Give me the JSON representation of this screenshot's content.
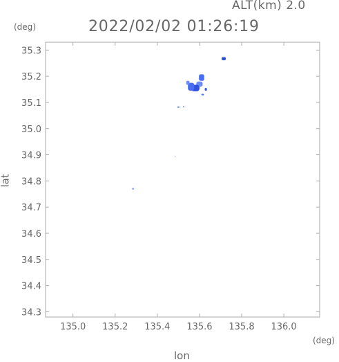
{
  "header": {
    "altitude_label": "ALT(km) 2.0",
    "timestamp": "2022/02/02 01:26:19"
  },
  "axes": {
    "y_unit": "(deg)",
    "x_unit": "(deg)",
    "xlabel": "lon",
    "ylabel": "lat"
  },
  "chart_data": {
    "type": "scatter",
    "title": "",
    "xlabel": "lon",
    "ylabel": "lat",
    "xlim": [
      134.87,
      136.17
    ],
    "ylim": [
      34.28,
      35.33
    ],
    "xticks": [
      "135.0",
      "135.2",
      "135.4",
      "135.6",
      "135.8",
      "136.0"
    ],
    "xtick_values": [
      135.0,
      135.2,
      135.4,
      135.6,
      135.8,
      136.0
    ],
    "yticks": [
      "34.3",
      "34.4",
      "34.5",
      "34.6",
      "34.7",
      "34.8",
      "34.9",
      "35.0",
      "35.1",
      "35.2",
      "35.3"
    ],
    "ytick_values": [
      34.3,
      34.4,
      34.5,
      34.6,
      34.7,
      34.8,
      34.9,
      35.0,
      35.1,
      35.2,
      35.3
    ],
    "grid": false,
    "colors": {
      "echo_dark": "#3050e0",
      "echo_mid": "#4a6ef0",
      "echo_light": "#6a8cf5",
      "axis": "#aaaaaa"
    },
    "series": [
      {
        "points": [
          {
            "x": 135.715,
            "y": 35.267,
            "w": 0.02,
            "h": 0.012
          },
          {
            "x": 135.61,
            "y": 35.195,
            "w": 0.025,
            "h": 0.025
          },
          {
            "x": 135.6,
            "y": 35.17,
            "w": 0.03,
            "h": 0.02
          },
          {
            "x": 135.58,
            "y": 35.155,
            "w": 0.04,
            "h": 0.025
          },
          {
            "x": 135.56,
            "y": 35.16,
            "w": 0.03,
            "h": 0.03
          },
          {
            "x": 135.545,
            "y": 35.175,
            "w": 0.015,
            "h": 0.015
          },
          {
            "x": 135.63,
            "y": 35.15,
            "w": 0.01,
            "h": 0.01
          },
          {
            "x": 135.615,
            "y": 35.13,
            "w": 0.012,
            "h": 0.006
          },
          {
            "x": 135.5,
            "y": 35.082,
            "w": 0.01,
            "h": 0.006
          },
          {
            "x": 135.525,
            "y": 35.083,
            "w": 0.006,
            "h": 0.004
          },
          {
            "x": 135.285,
            "y": 34.77,
            "w": 0.006,
            "h": 0.006
          },
          {
            "x": 135.485,
            "y": 34.893,
            "w": 0.003,
            "h": 0.003
          }
        ]
      }
    ]
  }
}
